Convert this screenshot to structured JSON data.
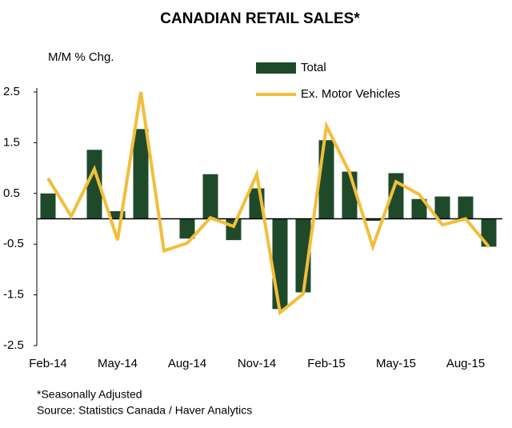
{
  "chart_data": {
    "type": "bar-line",
    "title": "CANADIAN RETAIL SALES*",
    "y_label": "M/M % Chg.",
    "notes": [
      "*Seasonally Adjusted",
      "Source: Statistics Canada / Haver Analytics"
    ],
    "categories": [
      "Feb-14",
      null,
      null,
      "May-14",
      null,
      null,
      "Aug-14",
      null,
      null,
      "Nov-14",
      null,
      null,
      "Feb-15",
      null,
      null,
      "May-15",
      null,
      null,
      "Aug-15",
      null
    ],
    "series": [
      {
        "name": "Total",
        "type": "bar",
        "color": "#1f4a2a",
        "values": [
          0.5,
          0,
          1.36,
          0.15,
          1.77,
          0,
          -0.39,
          0.88,
          -0.42,
          0.6,
          -1.78,
          -1.45,
          1.55,
          0.93,
          -0.04,
          0.9,
          0.39,
          0.44,
          0.44,
          -0.55
        ]
      },
      {
        "name": "Ex. Motor Vehicles",
        "type": "line",
        "color": "#f2be3a",
        "values": [
          0.8,
          0.05,
          0.98,
          -0.42,
          2.5,
          -0.63,
          -0.48,
          0.02,
          -0.15,
          0.88,
          -1.85,
          -1.48,
          1.83,
          0.91,
          -0.55,
          0.73,
          0.48,
          -0.12,
          0.0,
          -0.55
        ]
      }
    ],
    "ylim": [
      -2.5,
      2.5
    ],
    "yticks": [
      -2.5,
      -1.5,
      -0.5,
      0.5,
      1.5,
      2.5
    ],
    "legend": "top-right"
  }
}
